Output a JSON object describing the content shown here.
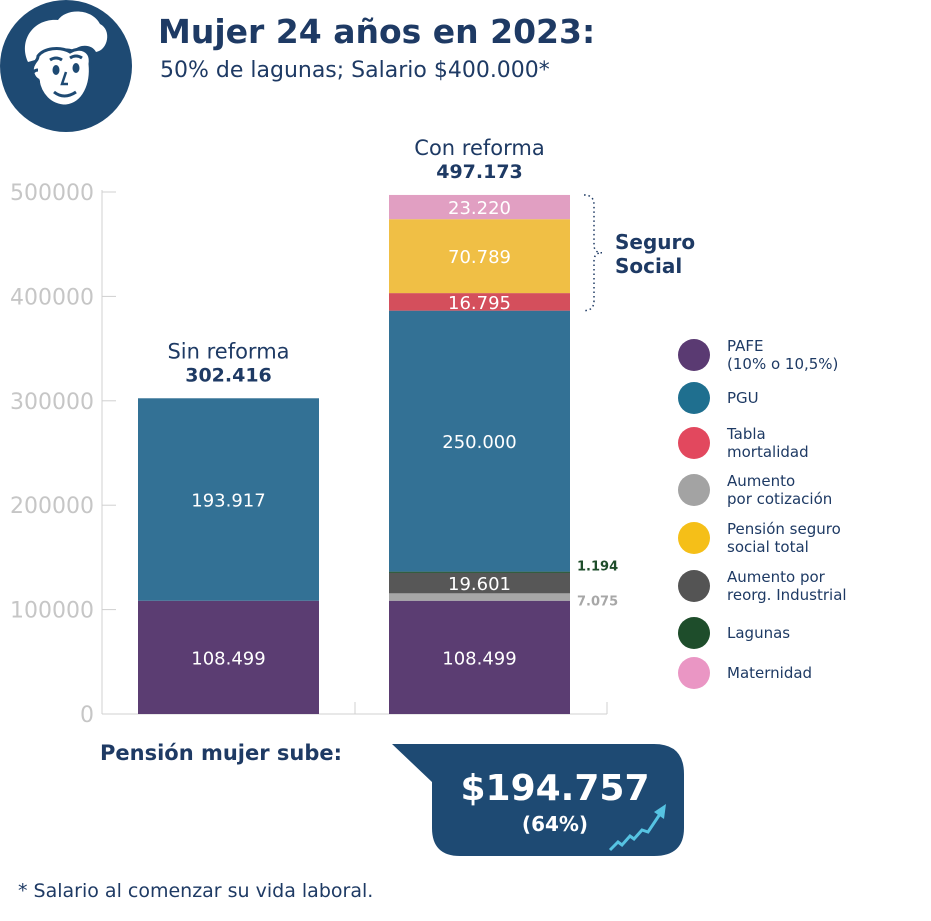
{
  "header": {
    "title": "Mujer 24 años en 2023:",
    "subtitle": "50% de lagunas; Salario $400.000*"
  },
  "chart_data": {
    "type": "bar",
    "stacked": true,
    "ylim": [
      0,
      500000
    ],
    "yticks": [
      "0",
      "100000",
      "200000",
      "300000",
      "400000",
      "500000"
    ],
    "grid": false,
    "bars": [
      {
        "label": "Sin reforma",
        "total_label": "302.416",
        "total": 302416,
        "segments": [
          {
            "series": "PAFE (10% o 10,5%)",
            "value": 108499,
            "label": "108.499",
            "color": "#5b3d72"
          },
          {
            "series": "PGU",
            "value": 193917,
            "label": "193.917",
            "color": "#337195"
          }
        ]
      },
      {
        "label": "Con reforma",
        "total_label": "497.173",
        "total": 497173,
        "segments": [
          {
            "series": "PAFE (10% o 10,5%)",
            "value": 108499,
            "label": "108.499",
            "color": "#5b3d72"
          },
          {
            "series": "Aumento por cotización",
            "value": 7075,
            "label": "7.075",
            "color": "#a7a7a7",
            "outside": true
          },
          {
            "series": "Aumento por reorg. Industrial",
            "value": 19601,
            "label": "19.601",
            "color": "#575757"
          },
          {
            "series": "Lagunas",
            "value": 1194,
            "label": "1.194",
            "color": "#1d4d2c",
            "outside": true
          },
          {
            "series": "PGU",
            "value": 250000,
            "label": "250.000",
            "color": "#337195"
          },
          {
            "series": "Tabla mortalidad",
            "value": 16795,
            "label": "16.795",
            "color": "#d44f5c"
          },
          {
            "series": "Pensión seguro social total",
            "value": 70789,
            "label": "70.789",
            "color": "#f0bf45"
          },
          {
            "series": "Maternidad",
            "value": 23220,
            "label": "23.220",
            "color": "#e19fc2"
          }
        ]
      }
    ],
    "bracket_label": "Seguro\nSocial",
    "legend_position": "right",
    "legend": [
      {
        "label": "PAFE\n(10% o 10,5%)",
        "color": "#5a3a72"
      },
      {
        "label": "PGU",
        "color": "#1f6f8f"
      },
      {
        "label": "Tabla\nmortalidad",
        "color": "#e2485e"
      },
      {
        "label": "Aumento\npor cotización",
        "color": "#a3a3a3"
      },
      {
        "label": "Pensión seguro\nsocial total",
        "color": "#f5bf18"
      },
      {
        "label": "Aumento por\nreorg. Industrial",
        "color": "#545454"
      },
      {
        "label": "Lagunas",
        "color": "#1e4d2b"
      },
      {
        "label": "Maternidad",
        "color": "#ea96c4"
      }
    ]
  },
  "callout": {
    "label": "Pensión mujer sube:",
    "amount": "$194.757",
    "percent": "(64%)"
  },
  "footnote": "* Salario al comenzar su vida laboral.",
  "colors": {
    "navy": "#1e3a64",
    "callout_bg": "#1e4a73",
    "axis_text": "#c6c6c6",
    "trend_line": "#56c3e2"
  }
}
